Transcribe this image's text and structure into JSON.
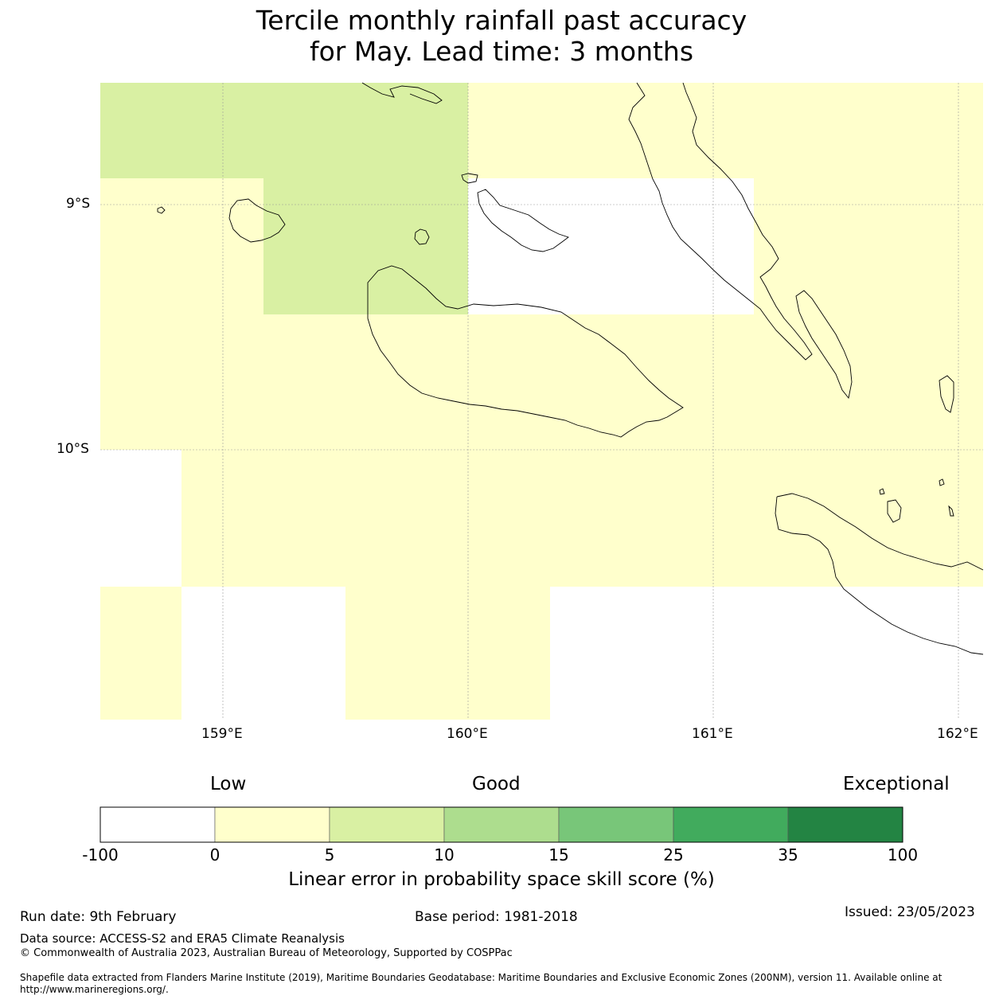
{
  "title": {
    "line1": "Tercile monthly rainfall past accuracy",
    "line2": "for May. Lead time: 3 months"
  },
  "map": {
    "lat_labels": [
      "9°S",
      "10°S"
    ],
    "lon_labels": [
      "159°E",
      "160°E",
      "161°E",
      "162°E"
    ],
    "skill_grid": {
      "rows": [
        [
          5,
          5,
          5,
          5,
          0,
          0,
          0,
          0,
          0,
          0,
          0,
          0
        ],
        [
          0,
          0,
          5,
          5,
          null,
          null,
          null,
          null,
          0,
          0,
          0,
          0
        ],
        [
          0,
          0,
          0,
          0,
          0,
          0,
          0,
          0,
          0,
          0,
          0,
          0
        ],
        [
          null,
          0,
          0,
          0,
          0,
          0,
          0,
          0,
          0,
          0,
          0,
          0
        ],
        [
          0,
          null,
          null,
          0,
          0,
          null,
          null,
          null,
          null,
          null,
          null,
          null
        ]
      ],
      "units": "%"
    },
    "colors": {
      "below_0": "#ffffff",
      "0_5": "#ffffcc",
      "5_10": "#d9f0a3",
      "10_15": "#addd8e",
      "15_25": "#78c679",
      "25_35": "#41ab5d",
      "35_100": "#238443"
    }
  },
  "colorbar": {
    "words": [
      "Low",
      "Good",
      "Exceptional"
    ],
    "ticks": [
      "-100",
      "0",
      "5",
      "10",
      "15",
      "25",
      "35",
      "100"
    ],
    "colors": [
      "#ffffff",
      "#ffffcc",
      "#d9f0a3",
      "#addd8e",
      "#78c679",
      "#41ab5d",
      "#238443"
    ],
    "label": "Linear error in probability space skill score (%)"
  },
  "footer": {
    "run_date": "Run date: 9th February",
    "base_period": "Base period: 1981-2018",
    "issued": "Issued: 23/05/2023",
    "data_source": "Data source: ACCESS-S2 and ERA5 Climate Reanalysis",
    "copyright": "© Commonwealth of Australia 2023, Australian Bureau of Meteorology, Supported by COSPPac",
    "shapefile_line1": "Shapefile data extracted from Flanders Marine Institute (2019), Maritime Boundaries Geodatabase: Maritime Boundaries and Exclusive Economic Zones (200NM), version 11. Available online at",
    "shapefile_line2": "http://www.marineregions.org/."
  }
}
